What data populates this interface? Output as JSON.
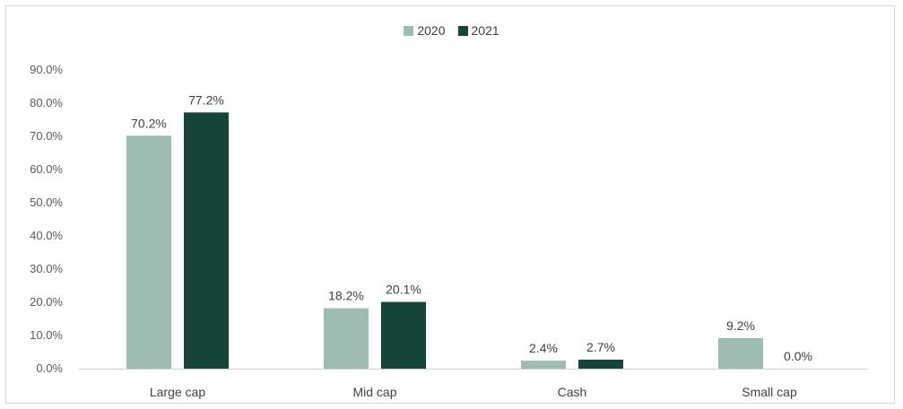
{
  "chart_data": {
    "type": "bar",
    "categories": [
      "Large cap",
      "Mid cap",
      "Cash",
      "Small cap"
    ],
    "series": [
      {
        "name": "2020",
        "color": "#9fbcb3",
        "values": [
          70.2,
          18.2,
          2.4,
          9.2
        ],
        "labels": [
          "70.2%",
          "18.2%",
          "2.4%",
          "9.2%"
        ]
      },
      {
        "name": "2021",
        "color": "#14443a",
        "values": [
          77.2,
          20.1,
          2.7,
          0.0
        ],
        "labels": [
          "77.2%",
          "20.1%",
          "2.7%",
          "0.0%"
        ]
      }
    ],
    "yticks": [
      "0.0%",
      "10.0%",
      "20.0%",
      "30.0%",
      "40.0%",
      "50.0%",
      "60.0%",
      "70.0%",
      "80.0%",
      "90.0%"
    ],
    "ylim": [
      0,
      90
    ],
    "title": "",
    "xlabel": "",
    "ylabel": "",
    "grid": false,
    "legend_position": "top-center"
  }
}
